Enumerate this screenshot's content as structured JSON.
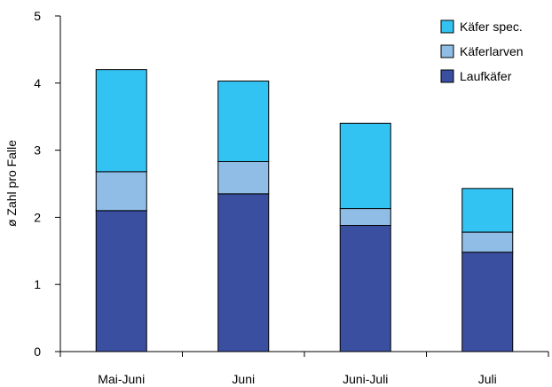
{
  "chart_data": {
    "type": "bar",
    "stacked": true,
    "categories": [
      "Mai-Juni",
      "Juni",
      "Juni-Juli",
      "Juli"
    ],
    "series": [
      {
        "name": "Laufkäfer",
        "values": [
          2.1,
          2.35,
          1.88,
          1.48
        ],
        "color": "#3a4fa0"
      },
      {
        "name": "Käferlarven",
        "values": [
          0.58,
          0.48,
          0.25,
          0.3
        ],
        "color": "#8fbde6"
      },
      {
        "name": "Käfer spec.",
        "values": [
          1.52,
          1.2,
          1.27,
          0.65
        ],
        "color": "#33c3f2"
      }
    ],
    "title": "",
    "xlabel": "",
    "ylabel": "ø Zahl pro Falle",
    "ylim": [
      0,
      5
    ],
    "yticks": [
      0,
      1,
      2,
      3,
      4,
      5
    ],
    "grid": false,
    "legend_position": "top-right",
    "legend_order": [
      "Käfer spec.",
      "Käferlarven",
      "Laufkäfer"
    ]
  }
}
